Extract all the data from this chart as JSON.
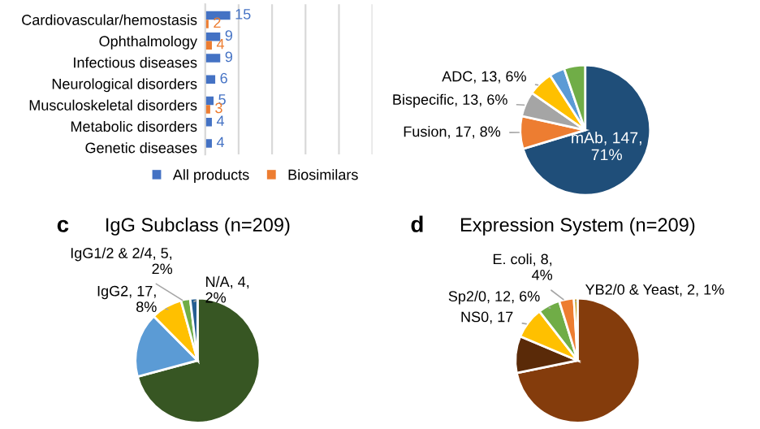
{
  "chart_data": [
    {
      "type": "bar",
      "orientation": "horizontal",
      "categories": [
        "Cardiovascular/hemostasis",
        "Ophthalmology",
        "Infectious diseases",
        "Neurological disorders",
        "Musculoskeletal disorders",
        "Metabolic disorders",
        "Genetic diseases"
      ],
      "series": [
        {
          "name": "All products",
          "color": "#4472c4",
          "values": [
            15,
            9,
            9,
            6,
            5,
            4,
            4
          ]
        },
        {
          "name": "Biosimilars",
          "color": "#ed7d31",
          "values": [
            2,
            4,
            null,
            null,
            3,
            null,
            null
          ]
        }
      ],
      "xlim": [
        0,
        100
      ],
      "xticks": [
        {
          "value": 0,
          "label": null
        },
        {
          "value": 20,
          "label": null
        },
        {
          "value": 40,
          "label": null
        },
        {
          "value": 60,
          "label": null
        },
        {
          "value": 80,
          "label": null
        },
        {
          "value": 100,
          "label": null
        }
      ],
      "grid": "x",
      "data_labels": true,
      "legend": "bottom"
    },
    {
      "type": "pie",
      "categories": [
        "mAb",
        "Fusion",
        "Bispecific",
        "ADC",
        null,
        null
      ],
      "values": [
        147,
        17,
        13,
        13,
        8,
        11
      ],
      "value_labels": [
        "147,\n71%",
        "17, 8%",
        "13, 6%",
        "13, 6%",
        null,
        null
      ],
      "colors": [
        "#1f4e79",
        "#ed7d31",
        "#a5a5a5",
        "#ffc000",
        "#5b9bd5",
        "#70ad47"
      ]
    },
    {
      "type": "pie",
      "title": "IgG Subclass (n=209)",
      "annotations": [
        "c"
      ],
      "categories": [
        null,
        null,
        "IgG2",
        "IgG1/2 & 2/4",
        "N/A"
      ],
      "values": [
        148,
        35,
        17,
        5,
        4
      ],
      "value_labels": [
        null,
        null,
        "17,\n8%",
        "5,\n2%",
        "4,\n2%"
      ],
      "colors": [
        "#375623",
        "#5b9bd5",
        "#ffc000",
        "#70ad47",
        "#255e91"
      ]
    },
    {
      "type": "pie",
      "title": "Expression System (n=209)",
      "annotations": [
        "d"
      ],
      "categories": [
        null,
        null,
        "NS0",
        "Sp2/0",
        "E. coli",
        "YB2/0 & Yeast"
      ],
      "values": [
        150,
        20,
        17,
        12,
        8,
        2
      ],
      "value_labels": [
        null,
        null,
        "17",
        "12, 6%",
        "8,\n4%",
        "2, 1%"
      ],
      "colors": [
        "#843c0c",
        "#5a2a08",
        "#ffc000",
        "#70ad47",
        "#ed7d31",
        "#bf9000"
      ]
    }
  ]
}
